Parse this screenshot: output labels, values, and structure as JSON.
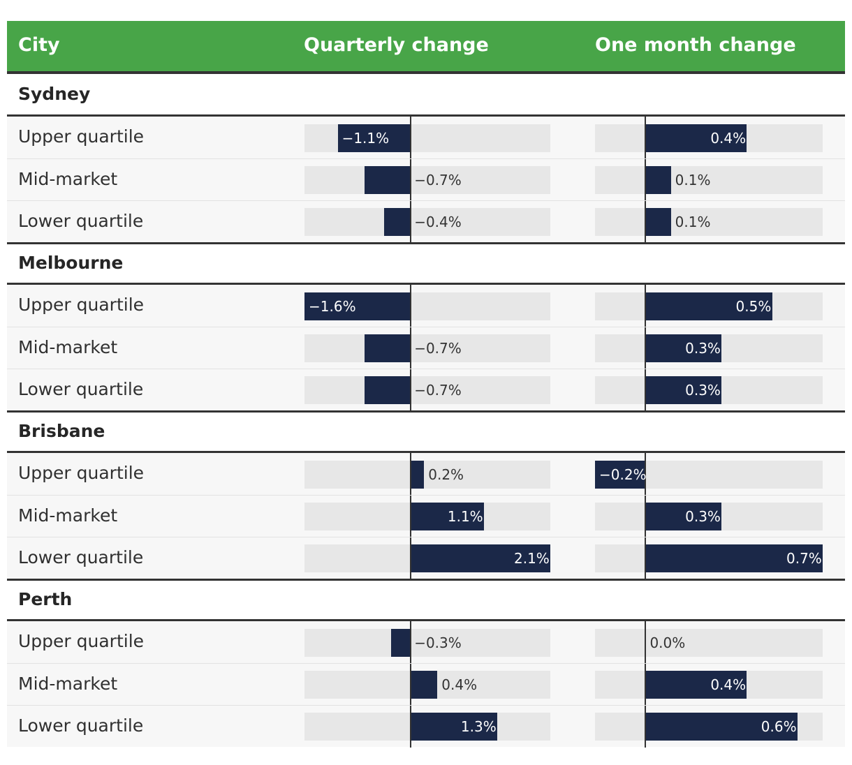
{
  "header": {
    "city": "City",
    "quarterly": "Quarterly change",
    "monthly": "One month change"
  },
  "chart_data": {
    "type": "bar",
    "title": "",
    "series": [
      {
        "name": "Quarterly change",
        "unit": "%",
        "range": [
          -1.6,
          2.1
        ]
      },
      {
        "name": "One month change",
        "unit": "%",
        "range": [
          -0.2,
          0.7
        ]
      }
    ],
    "groups": [
      {
        "city": "Sydney",
        "rows": [
          {
            "label": "Upper quartile",
            "q": -1.1,
            "q_label": "−1.1%",
            "m": 0.4,
            "m_label": "0.4%"
          },
          {
            "label": "Mid-market",
            "q": -0.7,
            "q_label": "−0.7%",
            "m": 0.1,
            "m_label": "0.1%"
          },
          {
            "label": "Lower quartile",
            "q": -0.4,
            "q_label": "−0.4%",
            "m": 0.1,
            "m_label": "0.1%"
          }
        ]
      },
      {
        "city": "Melbourne",
        "rows": [
          {
            "label": "Upper quartile",
            "q": -1.6,
            "q_label": "−1.6%",
            "m": 0.5,
            "m_label": "0.5%"
          },
          {
            "label": "Mid-market",
            "q": -0.7,
            "q_label": "−0.7%",
            "m": 0.3,
            "m_label": "0.3%"
          },
          {
            "label": "Lower quartile",
            "q": -0.7,
            "q_label": "−0.7%",
            "m": 0.3,
            "m_label": "0.3%"
          }
        ]
      },
      {
        "city": "Brisbane",
        "rows": [
          {
            "label": "Upper quartile",
            "q": 0.2,
            "q_label": "0.2%",
            "m": -0.2,
            "m_label": "−0.2%"
          },
          {
            "label": "Mid-market",
            "q": 1.1,
            "q_label": "1.1%",
            "m": 0.3,
            "m_label": "0.3%"
          },
          {
            "label": "Lower quartile",
            "q": 2.1,
            "q_label": "2.1%",
            "m": 0.7,
            "m_label": "0.7%"
          }
        ]
      },
      {
        "city": "Perth",
        "rows": [
          {
            "label": "Upper quartile",
            "q": -0.3,
            "q_label": "−0.3%",
            "m": 0.0,
            "m_label": "0.0%"
          },
          {
            "label": "Mid-market",
            "q": 0.4,
            "q_label": "0.4%",
            "m": 0.4,
            "m_label": "0.4%"
          },
          {
            "label": "Lower quartile",
            "q": 1.3,
            "q_label": "1.3%",
            "m": 0.6,
            "m_label": "0.6%"
          }
        ]
      }
    ]
  },
  "colors": {
    "header_bg": "#48a548",
    "bar": "#1b2848",
    "track": "#e7e7e7",
    "row_bg": "#f7f7f7"
  }
}
